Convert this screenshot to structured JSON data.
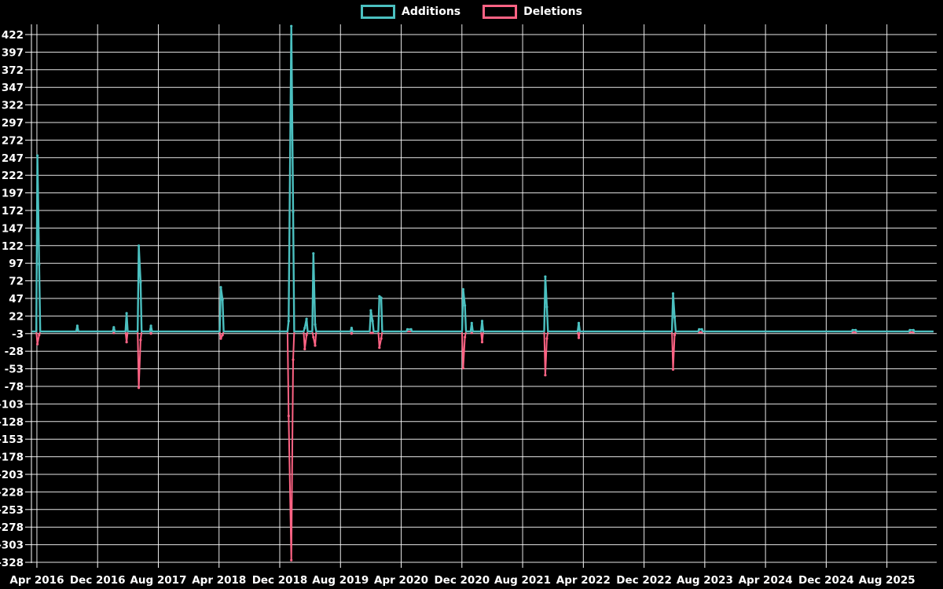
{
  "page": {
    "background": "#000000"
  },
  "legend": {
    "items": [
      {
        "label": "Additions",
        "color": "#4BC0C0"
      },
      {
        "label": "Deletions",
        "color": "#FF6384"
      }
    ]
  },
  "chart_data": {
    "type": "line",
    "title": "",
    "legend_position": "top-center",
    "grid": "on",
    "colors": {
      "additions": "#4BC0C0",
      "deletions": "#FF6384",
      "grid": "#FFFFFF",
      "text": "#FFFFFF",
      "background": "#000000"
    },
    "y_axis": {
      "min": -328,
      "max": 422,
      "step": 25,
      "tick_labels": [
        "422",
        "397",
        "372",
        "347",
        "322",
        "297",
        "272",
        "247",
        "222",
        "197",
        "172",
        "147",
        "122",
        "97",
        "72",
        "47",
        "22",
        "-3",
        "-28",
        "-53",
        "-78",
        "-103",
        "-128",
        "-153",
        "-178",
        "-203",
        "-228",
        "-253",
        "-278",
        "-303",
        "-328"
      ]
    },
    "x_axis": {
      "tick_labels": [
        "Apr 2016",
        "Dec 2016",
        "Aug 2017",
        "Apr 2018",
        "Dec 2018",
        "Aug 2019",
        "Apr 2020",
        "Dec 2020",
        "Aug 2021",
        "Apr 2022",
        "Dec 2022",
        "Aug 2023",
        "Apr 2024",
        "Dec 2024",
        "Aug 2025"
      ],
      "interval_months": 8
    },
    "series": [
      {
        "name": "Additions",
        "color": "#4BC0C0"
      },
      {
        "name": "Deletions",
        "color": "#FF6384"
      }
    ],
    "points": [
      {
        "date": "2016-03-10",
        "additions": 0,
        "deletions": 0
      },
      {
        "date": "2016-04-03",
        "additions": 250,
        "deletions": -18
      },
      {
        "date": "2016-04-10",
        "additions": 95,
        "deletions": -5
      },
      {
        "date": "2016-09-11",
        "additions": 8,
        "deletions": 0
      },
      {
        "date": "2017-02-05",
        "additions": 6,
        "deletions": -2
      },
      {
        "date": "2017-03-26",
        "additions": 26,
        "deletions": -15
      },
      {
        "date": "2017-05-14",
        "additions": 122,
        "deletions": -80
      },
      {
        "date": "2017-05-21",
        "additions": 70,
        "deletions": -12
      },
      {
        "date": "2017-07-02",
        "additions": 8,
        "deletions": -3
      },
      {
        "date": "2018-04-08",
        "additions": 63,
        "deletions": -10
      },
      {
        "date": "2018-04-15",
        "additions": 45,
        "deletions": -5
      },
      {
        "date": "2019-01-06",
        "additions": 15,
        "deletions": -120
      },
      {
        "date": "2019-01-17",
        "additions": 434,
        "deletions": -325
      },
      {
        "date": "2019-01-24",
        "additions": 170,
        "deletions": -40
      },
      {
        "date": "2019-03-10",
        "additions": 5,
        "deletions": -25
      },
      {
        "date": "2019-03-17",
        "additions": 18,
        "deletions": -5
      },
      {
        "date": "2019-04-14",
        "additions": 111,
        "deletions": -8
      },
      {
        "date": "2019-04-21",
        "additions": 10,
        "deletions": -20
      },
      {
        "date": "2019-09-15",
        "additions": 5,
        "deletions": -3
      },
      {
        "date": "2019-12-01",
        "additions": 30,
        "deletions": -2
      },
      {
        "date": "2019-12-08",
        "additions": 15,
        "deletions": -2
      },
      {
        "date": "2020-01-05",
        "additions": 50,
        "deletions": -23
      },
      {
        "date": "2020-01-12",
        "additions": 48,
        "deletions": -10
      },
      {
        "date": "2020-04-26",
        "additions": 3,
        "deletions": 0
      },
      {
        "date": "2020-05-10",
        "additions": 3,
        "deletions": 0
      },
      {
        "date": "2020-12-06",
        "additions": 60,
        "deletions": -52
      },
      {
        "date": "2020-12-13",
        "additions": 37,
        "deletions": -8
      },
      {
        "date": "2021-01-10",
        "additions": 12,
        "deletions": -2
      },
      {
        "date": "2021-02-21",
        "additions": 15,
        "deletions": -15
      },
      {
        "date": "2021-10-31",
        "additions": 78,
        "deletions": -62
      },
      {
        "date": "2021-11-07",
        "additions": 35,
        "deletions": -10
      },
      {
        "date": "2022-03-13",
        "additions": 12,
        "deletions": -9
      },
      {
        "date": "2023-03-26",
        "additions": 54,
        "deletions": -54
      },
      {
        "date": "2023-04-02",
        "additions": 20,
        "deletions": -5
      },
      {
        "date": "2023-07-09",
        "additions": 3,
        "deletions": -1
      },
      {
        "date": "2023-07-20",
        "additions": 3,
        "deletions": -1
      },
      {
        "date": "2025-03-16",
        "additions": 2,
        "deletions": -1
      },
      {
        "date": "2025-03-28",
        "additions": 2,
        "deletions": -1
      },
      {
        "date": "2025-11-02",
        "additions": 2,
        "deletions": -1
      },
      {
        "date": "2025-11-16",
        "additions": 2,
        "deletions": -1
      },
      {
        "date": "2026-02-05",
        "additions": 0,
        "deletions": 0
      }
    ]
  }
}
